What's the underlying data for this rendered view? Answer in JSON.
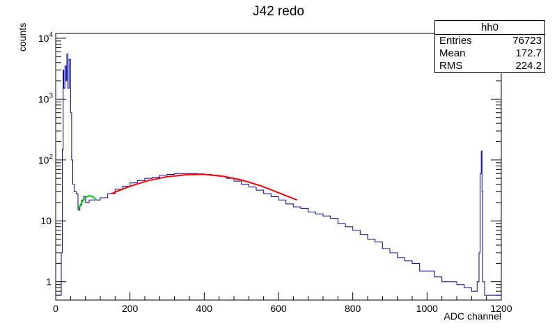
{
  "chart_data": {
    "type": "line",
    "title": "J42 redo",
    "xlabel": "ADC channel",
    "ylabel": "counts",
    "xlim": [
      0,
      1200
    ],
    "ylim": [
      0.5,
      12000
    ],
    "yscale": "log",
    "x_ticks": [
      "0",
      "200",
      "400",
      "600",
      "800",
      "1000",
      "1200"
    ],
    "y_ticks": [
      {
        "value": 1,
        "base": "1",
        "exp": ""
      },
      {
        "value": 10,
        "base": "10",
        "exp": ""
      },
      {
        "value": 100,
        "base": "10",
        "exp": "2"
      },
      {
        "value": 1000,
        "base": "10",
        "exp": "3"
      },
      {
        "value": 10000,
        "base": "10",
        "exp": "4"
      }
    ],
    "histogram": {
      "color": "#000099",
      "x": [
        0,
        10,
        15,
        18,
        20,
        22,
        25,
        28,
        30,
        33,
        36,
        40,
        43,
        46,
        50,
        55,
        60,
        65,
        70,
        75,
        80,
        90,
        100,
        120,
        140,
        160,
        180,
        200,
        220,
        240,
        260,
        280,
        300,
        320,
        340,
        360,
        380,
        400,
        420,
        440,
        460,
        480,
        500,
        520,
        540,
        560,
        580,
        600,
        620,
        640,
        660,
        680,
        700,
        720,
        740,
        760,
        780,
        800,
        820,
        840,
        860,
        880,
        900,
        920,
        940,
        960,
        980,
        1000,
        1020,
        1040,
        1060,
        1080,
        1100,
        1120,
        1130,
        1135,
        1140,
        1143,
        1146,
        1148,
        1150,
        1155,
        1160,
        1200
      ],
      "y": [
        0.6,
        0.6,
        3,
        150,
        3000,
        1500,
        3500,
        2000,
        5500,
        1500,
        4500,
        600,
        100,
        40,
        30,
        28,
        15,
        18,
        22,
        25,
        20,
        22,
        22,
        24,
        28,
        33,
        37,
        42,
        46,
        50,
        52,
        56,
        58,
        60,
        60,
        60,
        59,
        58,
        56,
        54,
        50,
        45,
        40,
        36,
        32,
        28,
        25,
        22,
        19,
        17,
        16,
        14,
        13,
        12,
        11,
        9,
        8,
        7,
        6,
        5,
        4.5,
        3.5,
        3,
        2.5,
        2.2,
        2,
        1.5,
        1.5,
        1.2,
        1,
        1,
        0.9,
        0.8,
        0.7,
        0.7,
        1,
        3,
        60,
        140,
        30,
        1,
        0.6,
        0.6,
        0.6
      ]
    },
    "fits": [
      {
        "color": "#00cc00",
        "x": [
          60,
          70,
          80,
          90,
          100,
          110
        ],
        "y": [
          15,
          20,
          24,
          26,
          25,
          22
        ]
      },
      {
        "color": "#ff0000",
        "x": [
          150,
          200,
          250,
          300,
          350,
          400,
          450,
          500,
          550,
          600,
          650
        ],
        "y": [
          28,
          37,
          46,
          53,
          57,
          58,
          54,
          47,
          38,
          29,
          22
        ]
      }
    ]
  },
  "stats": {
    "name": "hh0",
    "rows": [
      {
        "label": "Entries",
        "value": "76723"
      },
      {
        "label": "Mean",
        "value": "172.7"
      },
      {
        "label": "RMS",
        "value": "224.2"
      }
    ]
  }
}
